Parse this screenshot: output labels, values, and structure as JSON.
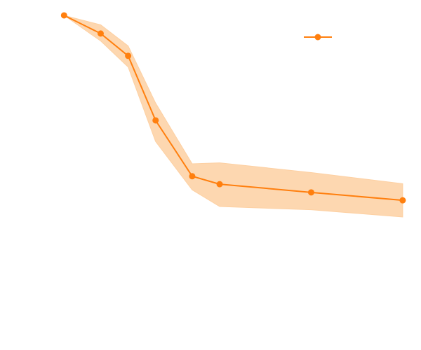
{
  "chart_data": {
    "type": "line",
    "title": "",
    "xlabel": "",
    "ylabel": "",
    "grid": false,
    "legend_placement": "top-right",
    "series": [
      {
        "name": "",
        "color": "#ff7f0e",
        "band_color": "#fdd0a2",
        "x": [
          0,
          0.2,
          0.35,
          0.5,
          0.7,
          0.85,
          1.35,
          1.85
        ],
        "y": [
          0.998,
          0.925,
          0.835,
          0.575,
          0.35,
          0.318,
          0.285,
          0.253
        ],
        "lower": [
          0.998,
          0.895,
          0.79,
          0.49,
          0.295,
          0.228,
          0.215,
          0.186
        ],
        "upper": [
          0.998,
          0.96,
          0.875,
          0.645,
          0.4,
          0.404,
          0.365,
          0.32
        ]
      }
    ],
    "xlim": [
      -0.35,
      1.95
    ],
    "ylim": [
      -0.35,
      1.06
    ]
  }
}
